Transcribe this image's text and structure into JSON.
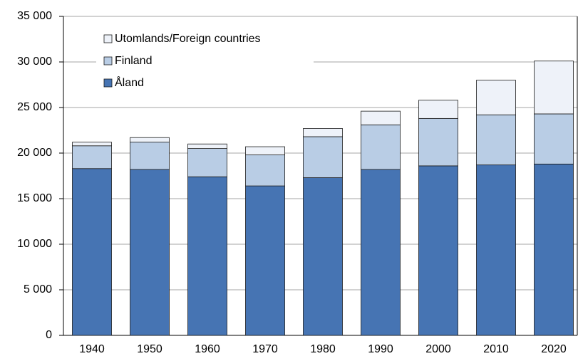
{
  "chart_data": {
    "type": "stacked_bar",
    "categories": [
      "1940",
      "1950",
      "1960",
      "1970",
      "1980",
      "1990",
      "2000",
      "2010",
      "2020"
    ],
    "series": [
      {
        "name": "Åland",
        "color": "#4674b3",
        "values": [
          18300,
          18200,
          17400,
          16400,
          17300,
          18200,
          18600,
          18700,
          18800
        ]
      },
      {
        "name": "Finland",
        "color": "#b9cde5",
        "values": [
          2500,
          3000,
          3100,
          3400,
          4500,
          4900,
          5200,
          5500,
          5500
        ]
      },
      {
        "name": "Utomlands/Foreign countries",
        "color": "#eef2f9",
        "values": [
          400,
          500,
          500,
          900,
          900,
          1500,
          2000,
          3800,
          5800
        ]
      }
    ],
    "ylim": [
      0,
      35000
    ],
    "yticks": [
      0,
      {
        "value": 5000,
        "label": "5 000"
      },
      {
        "value": 10000,
        "label": "10 000"
      },
      {
        "value": 15000,
        "label": "15 000"
      },
      {
        "value": 20000,
        "label": "20 000"
      },
      {
        "value": 25000,
        "label": "25 000"
      },
      {
        "value": 30000,
        "label": "30 000"
      },
      {
        "value": 35000,
        "label": "35 000"
      }
    ],
    "grid": true,
    "legend": "upper left"
  }
}
